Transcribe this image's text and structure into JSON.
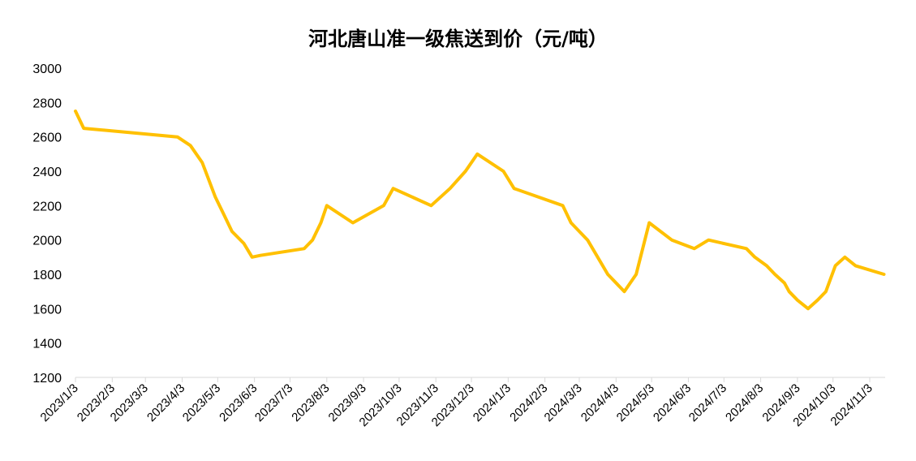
{
  "chart_data": {
    "type": "line",
    "title": "河北唐山准一级焦送到价（元/吨）",
    "xlabel": "",
    "ylabel": "",
    "ylim": [
      1200,
      3000
    ],
    "yticks": [
      1200,
      1400,
      1600,
      1800,
      2000,
      2200,
      2400,
      2600,
      2800,
      3000
    ],
    "x_range": [
      "2023/1/3",
      "2024/11/16"
    ],
    "xticks": [
      "2023/1/3",
      "2023/2/3",
      "2023/3/3",
      "2023/4/3",
      "2023/5/3",
      "2023/6/3",
      "2023/7/3",
      "2023/8/3",
      "2023/9/3",
      "2023/10/3",
      "2023/11/3",
      "2023/12/3",
      "2024/1/3",
      "2024/2/3",
      "2024/3/3",
      "2024/4/3",
      "2024/5/3",
      "2024/6/3",
      "2024/7/3",
      "2024/8/3",
      "2024/9/3",
      "2024/10/3",
      "2024/11/3"
    ],
    "grid": false,
    "legend": "none",
    "line_color": "#FFC000",
    "series": [
      {
        "x": [
          "2023/1/3",
          "2023/1/10",
          "2023/3/30",
          "2023/4/10",
          "2023/4/20",
          "2023/5/1",
          "2023/5/8",
          "2023/5/15",
          "2023/5/25",
          "2023/6/1",
          "2023/6/8",
          "2023/7/15",
          "2023/7/22",
          "2023/7/29",
          "2023/8/3",
          "2023/8/25",
          "2023/9/20",
          "2023/9/28",
          "2023/10/30",
          "2023/11/15",
          "2023/11/28",
          "2023/12/8",
          "2023/12/30",
          "2024/1/8",
          "2024/2/18",
          "2024/2/25",
          "2024/3/10",
          "2024/3/27",
          "2024/4/10",
          "2024/4/20",
          "2024/5/1",
          "2024/5/20",
          "2024/6/8",
          "2024/6/20",
          "2024/7/22",
          "2024/7/29",
          "2024/8/8",
          "2024/8/15",
          "2024/8/23",
          "2024/8/27",
          "2024/9/3",
          "2024/9/12",
          "2024/9/20",
          "2024/9/27",
          "2024/10/5",
          "2024/10/13",
          "2024/10/22",
          "2024/11/15"
        ],
        "values": [
          2750,
          2650,
          2600,
          2550,
          2450,
          2250,
          2150,
          2050,
          1980,
          1900,
          1910,
          1950,
          2000,
          2100,
          2200,
          2100,
          2200,
          2300,
          2200,
          2300,
          2400,
          2500,
          2400,
          2300,
          2200,
          2100,
          2000,
          1800,
          1700,
          1800,
          2100,
          2000,
          1950,
          2000,
          1950,
          1900,
          1850,
          1800,
          1750,
          1700,
          1650,
          1600,
          1650,
          1700,
          1850,
          1900,
          1850,
          1800
        ]
      }
    ]
  }
}
